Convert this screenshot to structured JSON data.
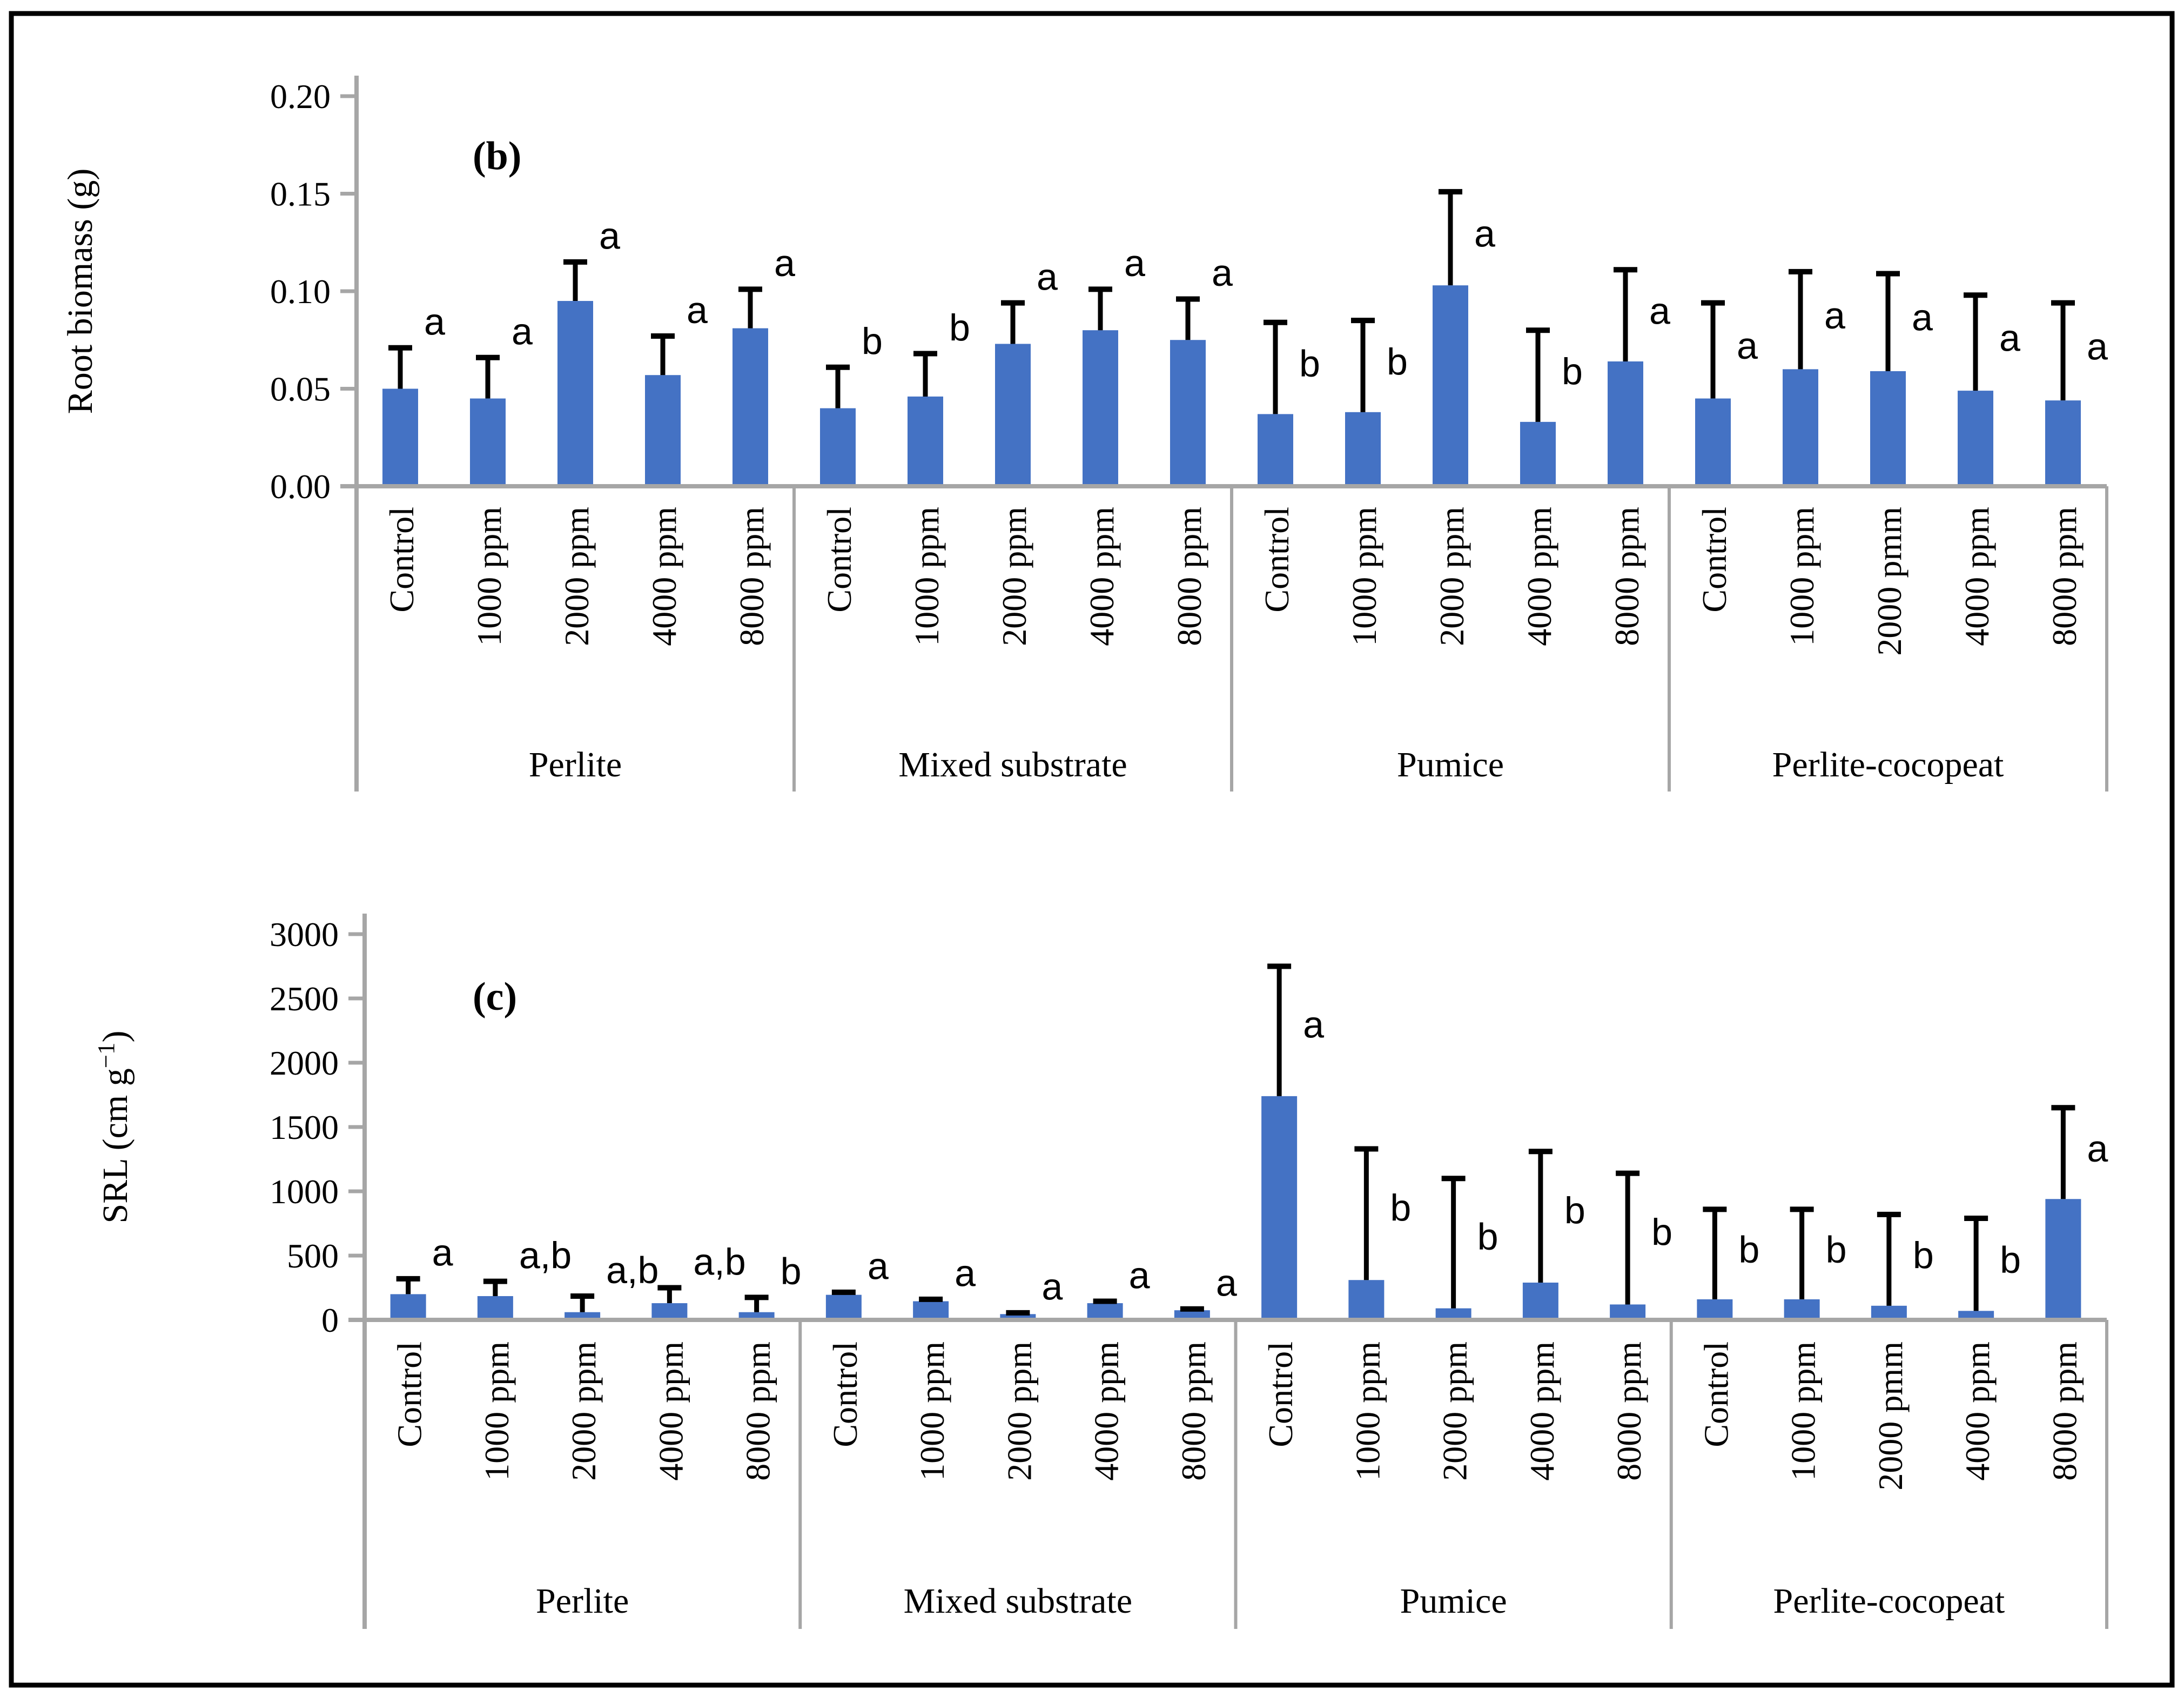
{
  "figure": {
    "background": "#ffffff",
    "border_color": "#000000"
  },
  "colors": {
    "bar": "#4472C4",
    "axis": "#A6A6A6",
    "error_bar": "#000000",
    "text": "#000000"
  },
  "chart_data": [
    {
      "type": "bar",
      "panel_label": "(b)",
      "ylabel": {
        "text": "Root biomass (g)",
        "sup": "",
        "after": ""
      },
      "ylim": [
        0,
        0.2
      ],
      "ytick_labels": [
        "0.00",
        "0.05",
        "0.10",
        "0.15",
        "0.20"
      ],
      "grid": false,
      "legend": null,
      "groups": [
        {
          "label": "Perlite",
          "bars": [
            {
              "category": "Control",
              "value": 0.05,
              "err_top": 0.071,
              "letter": "a"
            },
            {
              "category": "1000 ppm",
              "value": 0.045,
              "err_top": 0.066,
              "letter": "a"
            },
            {
              "category": "2000 ppm",
              "value": 0.095,
              "err_top": 0.115,
              "letter": "a"
            },
            {
              "category": "4000 ppm",
              "value": 0.057,
              "err_top": 0.077,
              "letter": "a"
            },
            {
              "category": "8000 ppm",
              "value": 0.081,
              "err_top": 0.101,
              "letter": "a"
            }
          ]
        },
        {
          "label": "Mixed substrate",
          "bars": [
            {
              "category": "Control",
              "value": 0.04,
              "err_top": 0.061,
              "letter": "b"
            },
            {
              "category": "1000 ppm",
              "value": 0.046,
              "err_top": 0.068,
              "letter": "b"
            },
            {
              "category": "2000 ppm",
              "value": 0.073,
              "err_top": 0.094,
              "letter": "a"
            },
            {
              "category": "4000 ppm",
              "value": 0.08,
              "err_top": 0.101,
              "letter": "a"
            },
            {
              "category": "8000 ppm",
              "value": 0.075,
              "err_top": 0.096,
              "letter": "a"
            }
          ]
        },
        {
          "label": "Pumice",
          "bars": [
            {
              "category": "Control",
              "value": 0.037,
              "err_top": 0.084,
              "letter": "b"
            },
            {
              "category": "1000 ppm",
              "value": 0.038,
              "err_top": 0.085,
              "letter": "b"
            },
            {
              "category": "2000 ppm",
              "value": 0.103,
              "err_top": 0.151,
              "letter": "a"
            },
            {
              "category": "4000 ppm",
              "value": 0.033,
              "err_top": 0.08,
              "letter": "b"
            },
            {
              "category": "8000 ppm",
              "value": 0.064,
              "err_top": 0.111,
              "letter": "a"
            }
          ]
        },
        {
          "label": "Perlite-cocopeat",
          "bars": [
            {
              "category": "Control",
              "value": 0.045,
              "err_top": 0.094,
              "letter": "a"
            },
            {
              "category": "1000 ppm",
              "value": 0.06,
              "err_top": 0.11,
              "letter": "a"
            },
            {
              "category": "2000 pmm",
              "value": 0.059,
              "err_top": 0.109,
              "letter": "a"
            },
            {
              "category": "4000 ppm",
              "value": 0.049,
              "err_top": 0.098,
              "letter": "a"
            },
            {
              "category": "8000 ppm",
              "value": 0.044,
              "err_top": 0.094,
              "letter": "a"
            }
          ]
        }
      ]
    },
    {
      "type": "bar",
      "panel_label": "(c)",
      "ylabel": {
        "text": "SRL (cm g",
        "sup": "−1",
        "after": ")"
      },
      "ylim": [
        0,
        3000
      ],
      "ytick_labels": [
        "0",
        "500",
        "1000",
        "1500",
        "2000",
        "2500",
        "3000"
      ],
      "grid": false,
      "legend": null,
      "groups": [
        {
          "label": "Perlite",
          "bars": [
            {
              "category": "Control",
              "value": 200,
              "err_top": 320,
              "letter": "a"
            },
            {
              "category": "1000 ppm",
              "value": 185,
              "err_top": 300,
              "letter": "a,b"
            },
            {
              "category": "2000 ppm",
              "value": 60,
              "err_top": 185,
              "letter": "a,b"
            },
            {
              "category": "4000 ppm",
              "value": 130,
              "err_top": 250,
              "letter": "a,b"
            },
            {
              "category": "8000 ppm",
              "value": 60,
              "err_top": 175,
              "letter": "b"
            }
          ]
        },
        {
          "label": "Mixed substrate",
          "bars": [
            {
              "category": "Control",
              "value": 195,
              "err_top": 215,
              "letter": "a"
            },
            {
              "category": "1000 ppm",
              "value": 145,
              "err_top": 160,
              "letter": "a"
            },
            {
              "category": "2000 ppm",
              "value": 45,
              "err_top": 55,
              "letter": "a"
            },
            {
              "category": "4000 ppm",
              "value": 130,
              "err_top": 145,
              "letter": "a"
            },
            {
              "category": "8000 ppm",
              "value": 75,
              "err_top": 85,
              "letter": "a"
            }
          ]
        },
        {
          "label": "Pumice",
          "bars": [
            {
              "category": "Control",
              "value": 1740,
              "err_top": 2750,
              "letter": "a"
            },
            {
              "category": "1000 ppm",
              "value": 310,
              "err_top": 1330,
              "letter": "b"
            },
            {
              "category": "2000 ppm",
              "value": 90,
              "err_top": 1100,
              "letter": "b"
            },
            {
              "category": "4000 ppm",
              "value": 290,
              "err_top": 1310,
              "letter": "b"
            },
            {
              "category": "8000 ppm",
              "value": 120,
              "err_top": 1140,
              "letter": "b"
            }
          ]
        },
        {
          "label": "Perlite-cocopeat",
          "bars": [
            {
              "category": "Control",
              "value": 160,
              "err_top": 860,
              "letter": "b"
            },
            {
              "category": "1000 ppm",
              "value": 160,
              "err_top": 860,
              "letter": "b"
            },
            {
              "category": "2000 pmm",
              "value": 110,
              "err_top": 820,
              "letter": "b"
            },
            {
              "category": "4000 ppm",
              "value": 70,
              "err_top": 790,
              "letter": "b"
            },
            {
              "category": "8000 ppm",
              "value": 940,
              "err_top": 1650,
              "letter": "a"
            }
          ]
        }
      ]
    }
  ]
}
